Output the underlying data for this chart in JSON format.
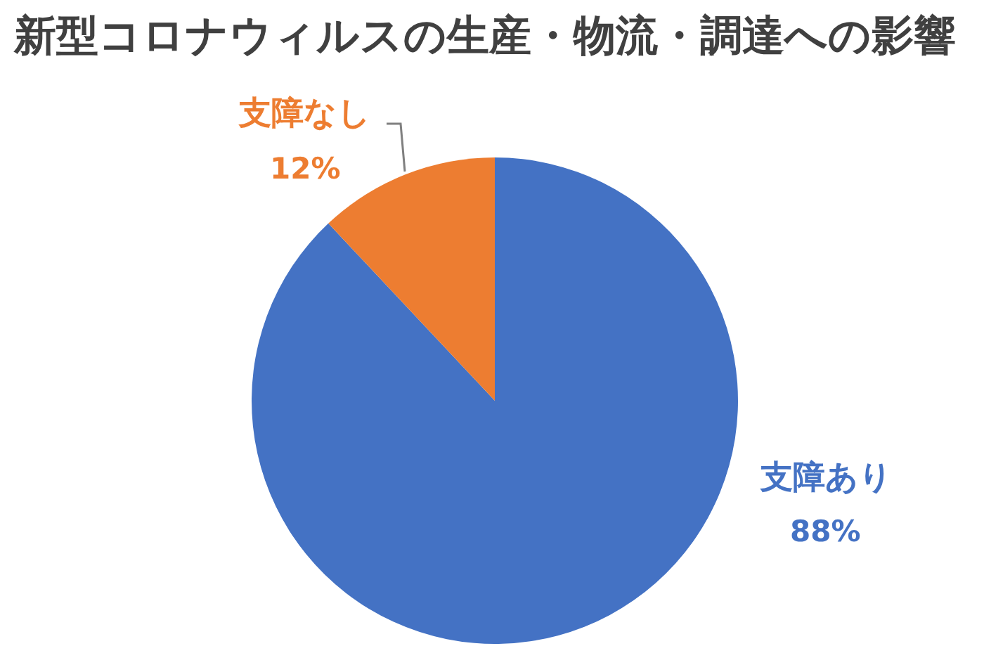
{
  "chart_data": {
    "type": "pie",
    "title": "新型コロナウィルスの生産・物流・調達への影響",
    "categories": [
      "支障あり",
      "支障なし"
    ],
    "values": [
      88,
      12
    ],
    "colors": [
      "#4472c4",
      "#ed7d31"
    ],
    "value_labels": [
      "88%",
      "12%"
    ],
    "legend": false
  }
}
